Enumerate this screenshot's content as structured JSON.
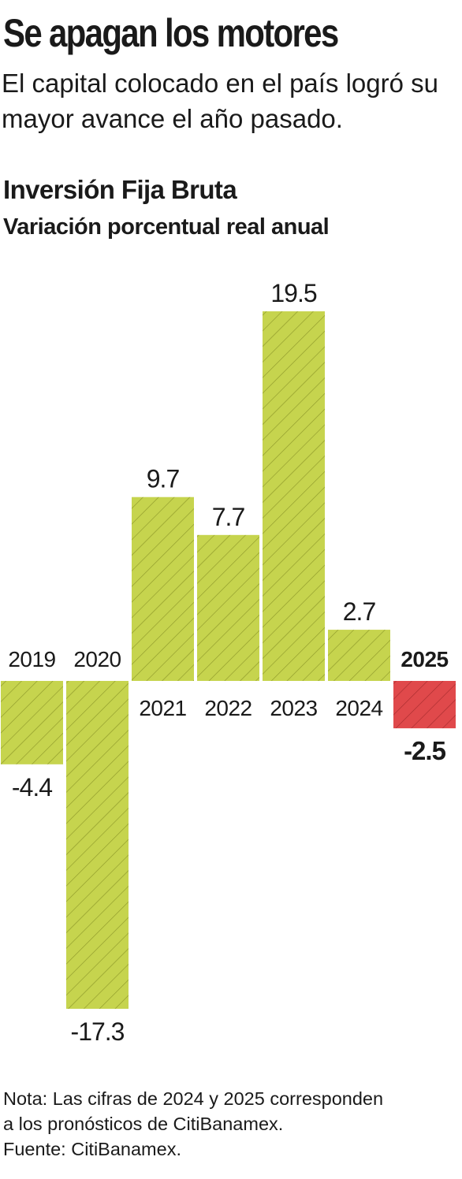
{
  "header": {
    "headline": "Se apagan los motores",
    "deck": "El capital colocado en el país logró su mayor avance el año pasado."
  },
  "chart_data": {
    "type": "bar",
    "title": "Inversión Fija Bruta",
    "subtitle": "Variación porcentual real anual",
    "xlabel": "",
    "ylabel": "",
    "categories": [
      "2019",
      "2020",
      "2021",
      "2022",
      "2023",
      "2024",
      "2025"
    ],
    "values": [
      -4.4,
      -17.3,
      9.7,
      7.7,
      19.5,
      2.7,
      -2.5
    ],
    "value_labels": [
      "-4.4",
      "-17.3",
      "9.7",
      "7.7",
      "19.5",
      "2.7",
      "-2.5"
    ],
    "ylim": [
      -17.3,
      19.5
    ],
    "highlight": "2025",
    "grid": false,
    "legend": "none",
    "colors": {
      "bar": "#c6d44e",
      "bar_hatch": "#8f9a2a",
      "highlight_bar": "#e0494b",
      "highlight_hatch": "#a72c2e",
      "text": "#1a1a1a"
    }
  },
  "footer": {
    "note_line1": "Nota: Las cifras de 2024 y 2025 corresponden",
    "note_line2": "a los pronósticos de CitiBanamex.",
    "source": "Fuente: CitiBanamex."
  }
}
